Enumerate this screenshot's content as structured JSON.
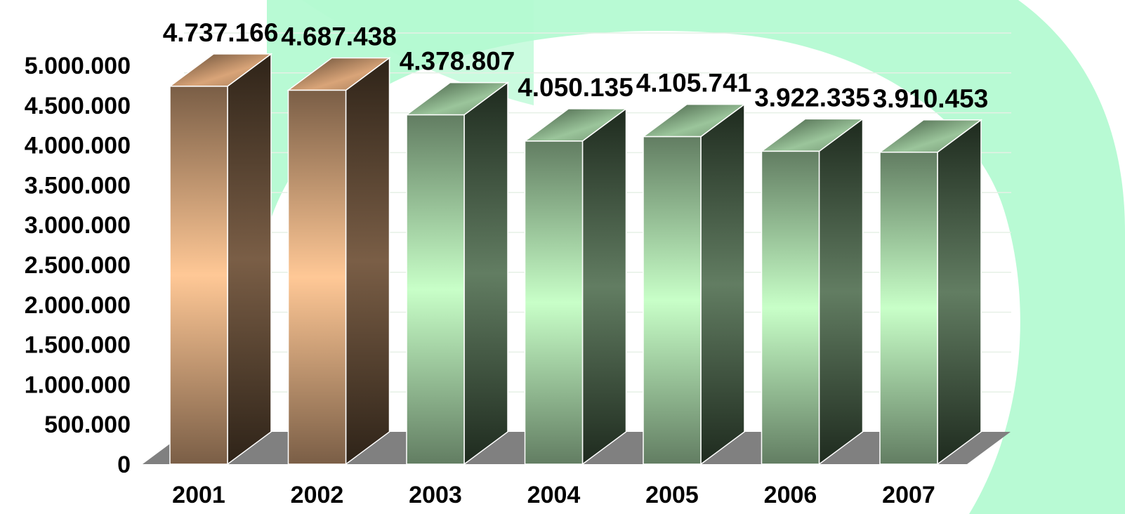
{
  "chart_data": {
    "type": "bar",
    "categories": [
      "2001",
      "2002",
      "2003",
      "2004",
      "2005",
      "2006",
      "2007"
    ],
    "values": [
      4737166,
      4687438,
      4378807,
      4050135,
      4105741,
      3922335,
      3910453
    ],
    "value_labels": [
      "4.737.166",
      "4.687.438",
      "4.378.807",
      "4.050.135",
      "4.105.741",
      "3.922.335",
      "3.910.453"
    ],
    "ylim": [
      0,
      5000000
    ],
    "yticks": [
      0,
      500000,
      1000000,
      1500000,
      2000000,
      2500000,
      3000000,
      3500000,
      4000000,
      4500000,
      5000000
    ],
    "ytick_labels": [
      "0",
      "500.000",
      "1.000.000",
      "1.500.000",
      "2.000.000",
      "2.500.000",
      "3.000.000",
      "3.500.000",
      "4.000.000",
      "4.500.000",
      "5.000.000"
    ],
    "grid": true,
    "title": "",
    "xlabel": "",
    "ylabel": "",
    "style": "3d-column",
    "bar_colors": [
      "tan",
      "tan",
      "green",
      "green",
      "green",
      "green",
      "green"
    ],
    "colors": {
      "tan_light": "#FFC896",
      "tan_dark": "#7A5E46",
      "tan_side": "#2E2318",
      "green_light": "#C8FFC8",
      "green_dark": "#627D62",
      "green_side": "#1E2A1E",
      "floor": "#808080",
      "background": "#B4FAD2",
      "grid": "#E6F0E6"
    }
  }
}
